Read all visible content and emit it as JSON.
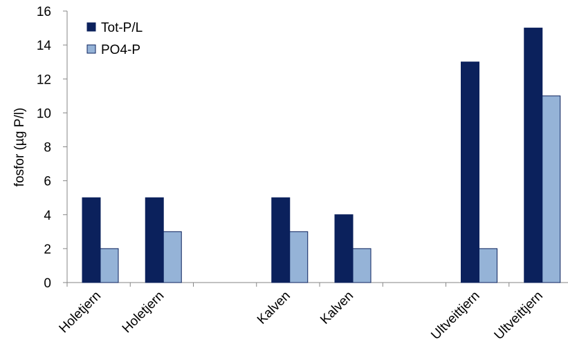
{
  "chart_data": {
    "type": "bar",
    "title": "",
    "xlabel": "",
    "ylabel": "fosfor (µg P/l)",
    "ylim": [
      0,
      16
    ],
    "yticks": [
      0,
      2,
      4,
      6,
      8,
      10,
      12,
      14,
      16
    ],
    "categories": [
      "Holetjern",
      "Holetjern",
      "",
      "Kalven",
      "Kalven",
      "",
      "Ultveittjern",
      "Ultveittjern"
    ],
    "series": [
      {
        "name": "Tot-P/L",
        "color": "#0b215c",
        "values": [
          5,
          5,
          null,
          5,
          4,
          null,
          13,
          15
        ]
      },
      {
        "name": "PO4-P",
        "color": "#95b3d7",
        "values": [
          2,
          3,
          null,
          3,
          2,
          null,
          2,
          11
        ]
      }
    ],
    "grid": false,
    "legend": "top-left"
  }
}
